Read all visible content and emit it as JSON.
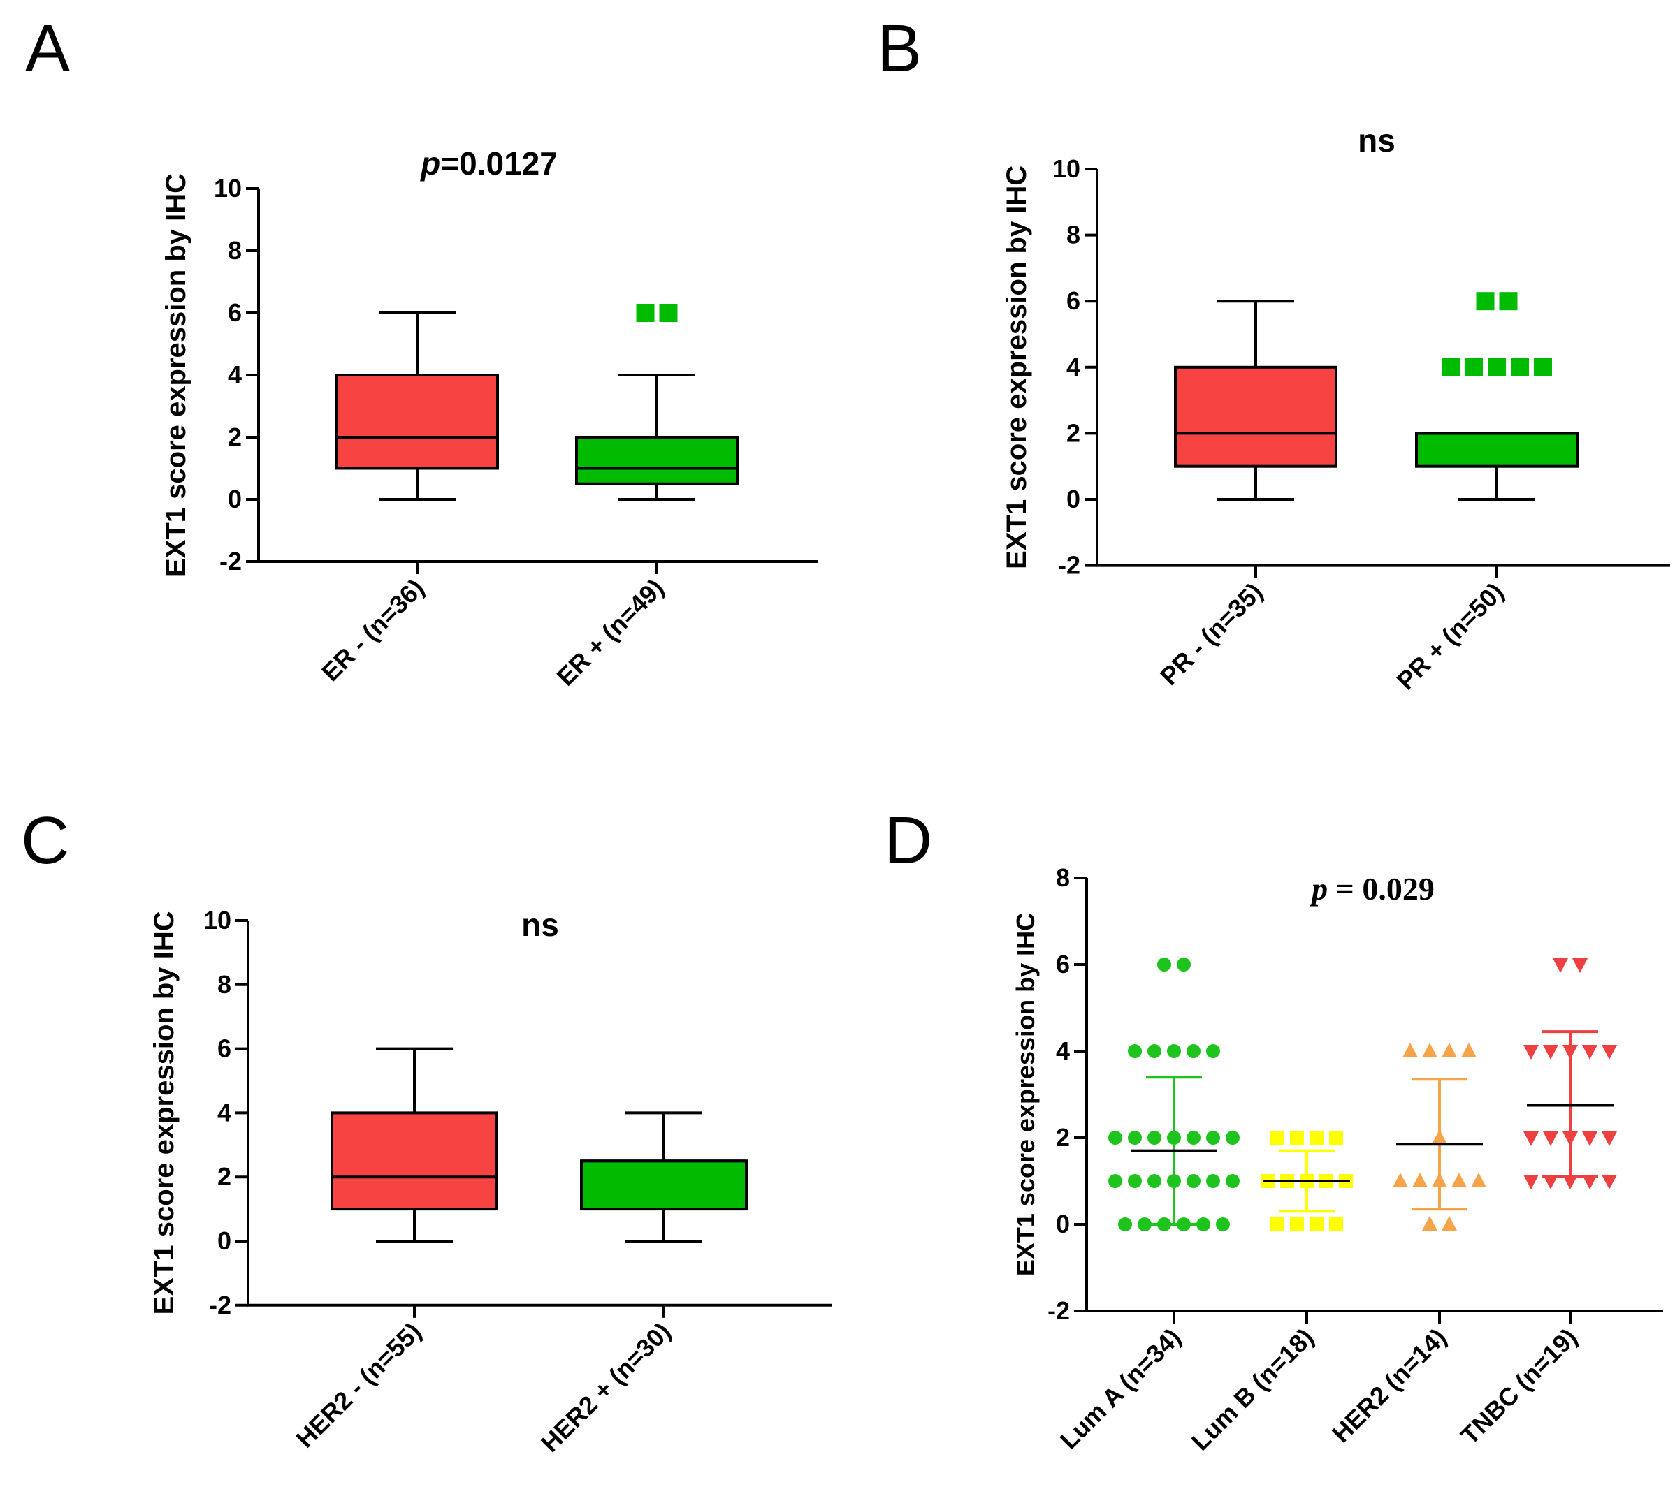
{
  "chart_data": [
    {
      "panel": "A",
      "type": "box",
      "title_p": "p",
      "title_rest": "=0.0127",
      "ylabel": "EXT1 score expression by IHC",
      "yticks": [
        "-2",
        "0",
        "2",
        "4",
        "6",
        "8",
        "10"
      ],
      "ylim": [
        -2,
        10
      ],
      "categories": [
        "ER - (n=36)",
        "ER + (n=49)"
      ],
      "series": [
        {
          "name": "ER - (n=36)",
          "color": "#f84343",
          "min": 0,
          "q1": 1,
          "median": 2,
          "q3": 4,
          "max": 6,
          "outliers": []
        },
        {
          "name": "ER + (n=49)",
          "color": "#00bb00",
          "min": 0,
          "q1": 0.5,
          "median": 1,
          "q3": 2,
          "max": 4,
          "outliers": [
            6,
            6
          ]
        }
      ]
    },
    {
      "panel": "B",
      "type": "box",
      "title_p": "",
      "title_rest": "ns",
      "ylabel": "EXT1 score expression by IHC",
      "yticks": [
        "-2",
        "0",
        "2",
        "4",
        "6",
        "8",
        "10"
      ],
      "ylim": [
        -2,
        10
      ],
      "categories": [
        "PR - (n=35)",
        "PR + (n=50)"
      ],
      "series": [
        {
          "name": "PR - (n=35)",
          "color": "#f84343",
          "min": 0,
          "q1": 1,
          "median": 2,
          "q3": 4,
          "max": 6,
          "outliers": []
        },
        {
          "name": "PR + (n=50)",
          "color": "#00bb00",
          "min": 0,
          "q1": 1,
          "median": 2,
          "q3": 2,
          "max": 2,
          "outliers": [
            6,
            6,
            4,
            4,
            4,
            4,
            4
          ]
        }
      ]
    },
    {
      "panel": "C",
      "type": "box",
      "title_p": "",
      "title_rest": "ns",
      "ylabel": "EXT1 score expression by IHC",
      "yticks": [
        "-2",
        "0",
        "2",
        "4",
        "6",
        "8",
        "10"
      ],
      "ylim": [
        -2,
        10
      ],
      "categories": [
        "HER2 - (n=55)",
        "HER2 + (n=30)"
      ],
      "series": [
        {
          "name": "HER2 - (n=55)",
          "color": "#f84343",
          "min": 0,
          "q1": 1,
          "median": 2,
          "q3": 4,
          "max": 6,
          "outliers": []
        },
        {
          "name": "HER2 + (n=30)",
          "color": "#00bb00",
          "min": 0,
          "q1": 1,
          "median": 2.5,
          "q3": 2.5,
          "max": 4,
          "outliers": []
        }
      ]
    },
    {
      "panel": "D",
      "type": "scatter",
      "title_p": "p",
      "title_rest": " = 0.029",
      "ylabel": "EXT1 score expression by IHC",
      "yticks": [
        "-2",
        "0",
        "2",
        "4",
        "6",
        "8"
      ],
      "ylim": [
        -2,
        8
      ],
      "categories": [
        "Lum A (n=34)",
        "Lum B (n=18)",
        "HER2 (n=14)",
        "TNBC (n=19)"
      ],
      "series": [
        {
          "name": "Lum A (n=34)",
          "color": "#1ec31e",
          "marker": "circle",
          "mean": 1.7,
          "sd_low": 0,
          "sd_high": 3.4,
          "points": [
            [
              6,
              2
            ],
            [
              4,
              5
            ],
            [
              2,
              7
            ],
            [
              1,
              7
            ],
            [
              0,
              6
            ]
          ]
        },
        {
          "name": "Lum B (n=18)",
          "color": "#ffff00",
          "marker": "square",
          "mean": 1.0,
          "sd_low": 0.3,
          "sd_high": 1.7,
          "points": [
            [
              2,
              4
            ],
            [
              1,
              5
            ],
            [
              0,
              4
            ]
          ]
        },
        {
          "name": "HER2 (n=14)",
          "color": "#f6a44a",
          "marker": "triangle-up",
          "mean": 1.85,
          "sd_low": 0.35,
          "sd_high": 3.35,
          "points": [
            [
              4,
              4
            ],
            [
              2,
              1
            ],
            [
              1,
              5
            ],
            [
              0,
              2
            ]
          ]
        },
        {
          "name": "TNBC (n=19)",
          "color": "#ee4040",
          "marker": "triangle-down",
          "mean": 2.75,
          "sd_low": 1.1,
          "sd_high": 4.45,
          "points": [
            [
              6,
              2
            ],
            [
              4,
              5
            ],
            [
              2,
              5
            ],
            [
              1,
              5
            ]
          ]
        }
      ]
    }
  ]
}
